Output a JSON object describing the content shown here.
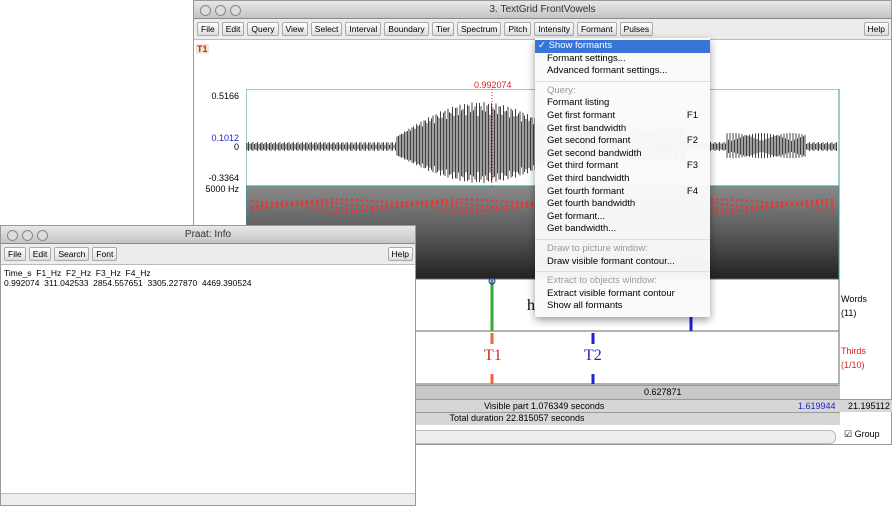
{
  "main_window": {
    "title": "3. TextGrid FrontVowels",
    "menu": [
      "File",
      "Edit",
      "Query",
      "View",
      "Select",
      "Interval",
      "Boundary",
      "Tier",
      "Spectrum",
      "Pitch",
      "Intensity",
      "Formant",
      "Pulses"
    ],
    "help": "Help",
    "tier_marker": "T1",
    "cursor_time": "0.992074",
    "wave_max": "0.5166",
    "wave_cursor": "0.1012",
    "wave_zero": "0",
    "wave_min": "-0.3364",
    "spectrogram_max": "5000 Hz",
    "words_text": "h",
    "words_name": "Words",
    "words_count": "(11)",
    "thirds_name": "Thirds",
    "thirds_count": "(1/10)",
    "interval_1": "T1",
    "interval_2": "T2",
    "interval_duration": "0.627871",
    "visible_part": "Visible part 1.076349 seconds",
    "visible_end": "1.619944",
    "total_end": "21.195112",
    "total_duration": "Total duration 22.815057 seconds",
    "group": "Group"
  },
  "formant_menu": {
    "sections": [
      {
        "items": [
          {
            "label": "✓ Show formants",
            "selected": true
          },
          {
            "label": "Formant settings..."
          },
          {
            "label": "Advanced formant settings..."
          }
        ]
      },
      {
        "heading": "Query:",
        "items": [
          {
            "label": "Formant listing"
          },
          {
            "label": "Get first formant",
            "shortcut": "F1"
          },
          {
            "label": "Get first bandwidth"
          },
          {
            "label": "Get second formant",
            "shortcut": "F2"
          },
          {
            "label": "Get second bandwidth"
          },
          {
            "label": "Get third formant",
            "shortcut": "F3"
          },
          {
            "label": "Get third bandwidth"
          },
          {
            "label": "Get fourth formant",
            "shortcut": "F4"
          },
          {
            "label": "Get fourth bandwidth"
          },
          {
            "label": "Get formant..."
          },
          {
            "label": "Get bandwidth..."
          }
        ]
      },
      {
        "heading": "Draw to picture window:",
        "items": [
          {
            "label": "Draw visible formant contour..."
          }
        ]
      },
      {
        "heading": "Extract to objects window:",
        "items": [
          {
            "label": "Extract visible formant contour"
          },
          {
            "label": "Show all formants"
          }
        ]
      }
    ]
  },
  "info_window": {
    "title": "Praat: Info",
    "menu": [
      "File",
      "Edit",
      "Search",
      "Font"
    ],
    "help": "Help",
    "lines": [
      "Time_s  F1_Hz  F2_Hz  F3_Hz  F4_Hz",
      "0.992074  311.042533  2854.557651  3305.227870  4469.390524"
    ]
  }
}
